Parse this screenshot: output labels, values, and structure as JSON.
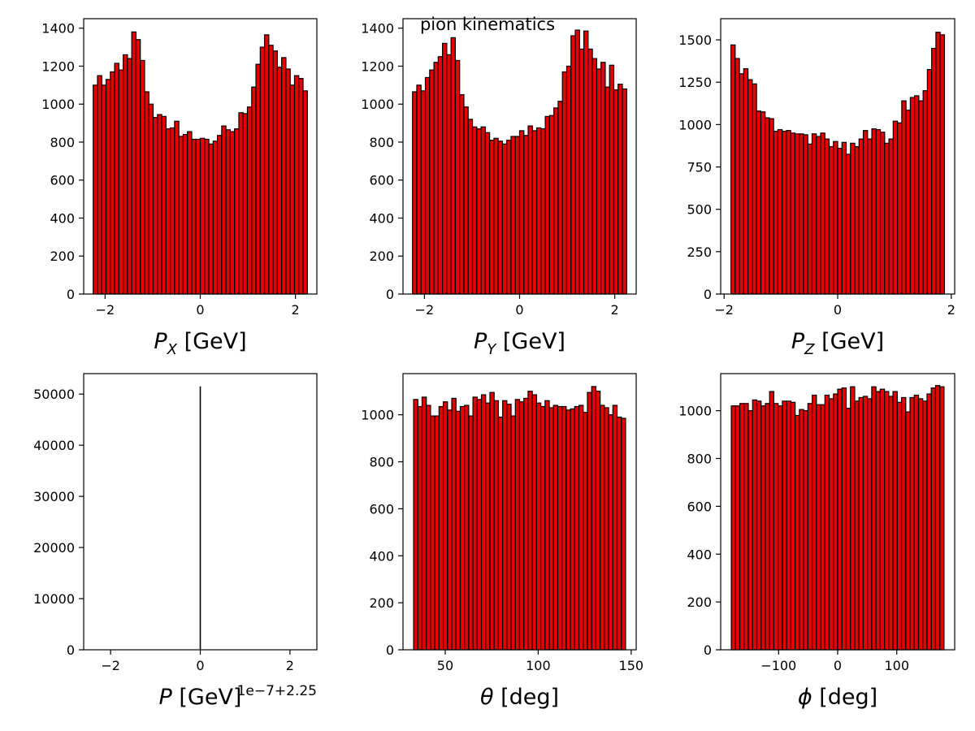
{
  "figure": {
    "suptitle": "pion kinematics",
    "bar_color": "#e60000",
    "edge_color": "#000000"
  },
  "chart_data": [
    {
      "type": "bar",
      "id": "px",
      "xlabel_sym": "P",
      "xlabel_sub": "X",
      "xlabel_unit": " [GeV]",
      "xlim": [
        -2.45,
        2.45
      ],
      "ylim": [
        0,
        1450
      ],
      "xticks": [
        -2,
        0,
        2
      ],
      "xtick_labels": [
        "−2",
        "0",
        "2"
      ],
      "yticks": [
        0,
        200,
        400,
        600,
        800,
        1000,
        1200,
        1400
      ],
      "ytick_labels": [
        "0",
        "200",
        "400",
        "600",
        "800",
        "1000",
        "1200",
        "1400"
      ],
      "bin_range": [
        -2.25,
        2.25
      ],
      "values": [
        1100,
        1150,
        1100,
        1130,
        1170,
        1215,
        1180,
        1260,
        1240,
        1380,
        1340,
        1230,
        1065,
        1000,
        930,
        945,
        935,
        870,
        875,
        910,
        830,
        840,
        855,
        815,
        815,
        820,
        815,
        790,
        805,
        835,
        885,
        865,
        855,
        870,
        955,
        950,
        985,
        1090,
        1210,
        1300,
        1365,
        1310,
        1280,
        1195,
        1245,
        1185,
        1100,
        1150,
        1135,
        1070
      ]
    },
    {
      "type": "bar",
      "id": "py",
      "xlabel_sym": "P",
      "xlabel_sub": "Y",
      "xlabel_unit": " [GeV]",
      "xlim": [
        -2.45,
        2.45
      ],
      "ylim": [
        0,
        1450
      ],
      "xticks": [
        -2,
        0,
        2
      ],
      "xtick_labels": [
        "−2",
        "0",
        "2"
      ],
      "yticks": [
        0,
        200,
        400,
        600,
        800,
        1000,
        1200,
        1400
      ],
      "ytick_labels": [
        "0",
        "200",
        "400",
        "600",
        "800",
        "1000",
        "1200",
        "1400"
      ],
      "bin_range": [
        -2.25,
        2.25
      ],
      "values": [
        1065,
        1100,
        1070,
        1140,
        1180,
        1220,
        1250,
        1320,
        1260,
        1350,
        1230,
        1050,
        985,
        920,
        880,
        870,
        880,
        850,
        810,
        820,
        805,
        790,
        810,
        830,
        830,
        860,
        835,
        885,
        860,
        875,
        870,
        935,
        940,
        980,
        1015,
        1170,
        1200,
        1360,
        1390,
        1290,
        1385,
        1290,
        1240,
        1185,
        1220,
        1090,
        1205,
        1075,
        1105,
        1080
      ]
    },
    {
      "type": "bar",
      "id": "pz",
      "xlabel_sym": "P",
      "xlabel_sub": "Z",
      "xlabel_unit": " [GeV]",
      "xlim": [
        -2.06,
        2.06
      ],
      "ylim": [
        0,
        1625
      ],
      "xticks": [
        -2,
        0,
        2
      ],
      "xtick_labels": [
        "−2",
        "0",
        "2"
      ],
      "yticks": [
        0,
        250,
        500,
        750,
        1000,
        1250,
        1500
      ],
      "ytick_labels": [
        "0",
        "250",
        "500",
        "750",
        "1000",
        "1250",
        "1500"
      ],
      "bin_range": [
        -1.88,
        1.88
      ],
      "values": [
        1470,
        1390,
        1300,
        1330,
        1265,
        1240,
        1080,
        1075,
        1040,
        1035,
        960,
        970,
        960,
        965,
        950,
        945,
        945,
        940,
        885,
        945,
        930,
        950,
        915,
        870,
        900,
        860,
        895,
        825,
        890,
        870,
        915,
        965,
        915,
        975,
        970,
        955,
        890,
        915,
        1020,
        1010,
        1140,
        1085,
        1160,
        1170,
        1140,
        1200,
        1325,
        1450,
        1545,
        1530
      ]
    },
    {
      "type": "bar",
      "id": "p",
      "xlabel_sym": "P",
      "xlabel_sub": "",
      "xlabel_unit": " [GeV]",
      "offset_text": "1e−7+2.25",
      "xlim": [
        -2.6,
        2.6
      ],
      "ylim": [
        0,
        54000
      ],
      "xticks": [
        -2,
        0,
        2
      ],
      "xtick_labels": [
        "−2",
        "0",
        "2"
      ],
      "yticks": [
        0,
        10000,
        20000,
        30000,
        40000,
        50000
      ],
      "ytick_labels": [
        "0",
        "10000",
        "20000",
        "30000",
        "40000",
        "50000"
      ],
      "spike_x": 0,
      "spike_value": 51500
    },
    {
      "type": "bar",
      "id": "theta",
      "xlabel_sym": "θ",
      "xlabel_sub": "",
      "xlabel_unit": " [deg]",
      "xlim": [
        27.3,
        152.7
      ],
      "ylim": [
        0,
        1175
      ],
      "xticks": [
        50,
        100,
        150
      ],
      "xtick_labels": [
        "50",
        "100",
        "150"
      ],
      "yticks": [
        0,
        200,
        400,
        600,
        800,
        1000
      ],
      "ytick_labels": [
        "0",
        "200",
        "400",
        "600",
        "800",
        "1000"
      ],
      "bin_range": [
        33,
        147
      ],
      "values": [
        1065,
        1035,
        1075,
        1040,
        995,
        995,
        1035,
        1055,
        1020,
        1070,
        1015,
        1035,
        1040,
        995,
        1075,
        1065,
        1085,
        1050,
        1095,
        1060,
        990,
        1060,
        1045,
        995,
        1065,
        1055,
        1070,
        1100,
        1085,
        1050,
        1035,
        1060,
        1030,
        1040,
        1035,
        1035,
        1020,
        1025,
        1035,
        1040,
        1010,
        1095,
        1120,
        1100,
        1040,
        1030,
        1000,
        1040,
        990,
        985
      ]
    },
    {
      "type": "bar",
      "id": "phi",
      "xlabel_sym": "ϕ",
      "xlabel_sub": "",
      "xlabel_unit": " [deg]",
      "xlim": [
        -198,
        198
      ],
      "ylim": [
        0,
        1155
      ],
      "xticks": [
        -100,
        0,
        100
      ],
      "xtick_labels": [
        "−100",
        "0",
        "100"
      ],
      "yticks": [
        0,
        200,
        400,
        600,
        800,
        1000
      ],
      "ytick_labels": [
        "0",
        "200",
        "400",
        "600",
        "800",
        "1000"
      ],
      "bin_range": [
        -180,
        180
      ],
      "values": [
        1020,
        1020,
        1030,
        1030,
        1000,
        1045,
        1040,
        1020,
        1030,
        1080,
        1030,
        1020,
        1040,
        1040,
        1035,
        980,
        1005,
        1000,
        1030,
        1065,
        1025,
        1025,
        1065,
        1050,
        1070,
        1090,
        1095,
        1010,
        1100,
        1040,
        1055,
        1060,
        1050,
        1100,
        1080,
        1090,
        1080,
        1060,
        1080,
        1035,
        1055,
        995,
        1055,
        1065,
        1050,
        1040,
        1070,
        1095,
        1105,
        1100
      ]
    }
  ]
}
